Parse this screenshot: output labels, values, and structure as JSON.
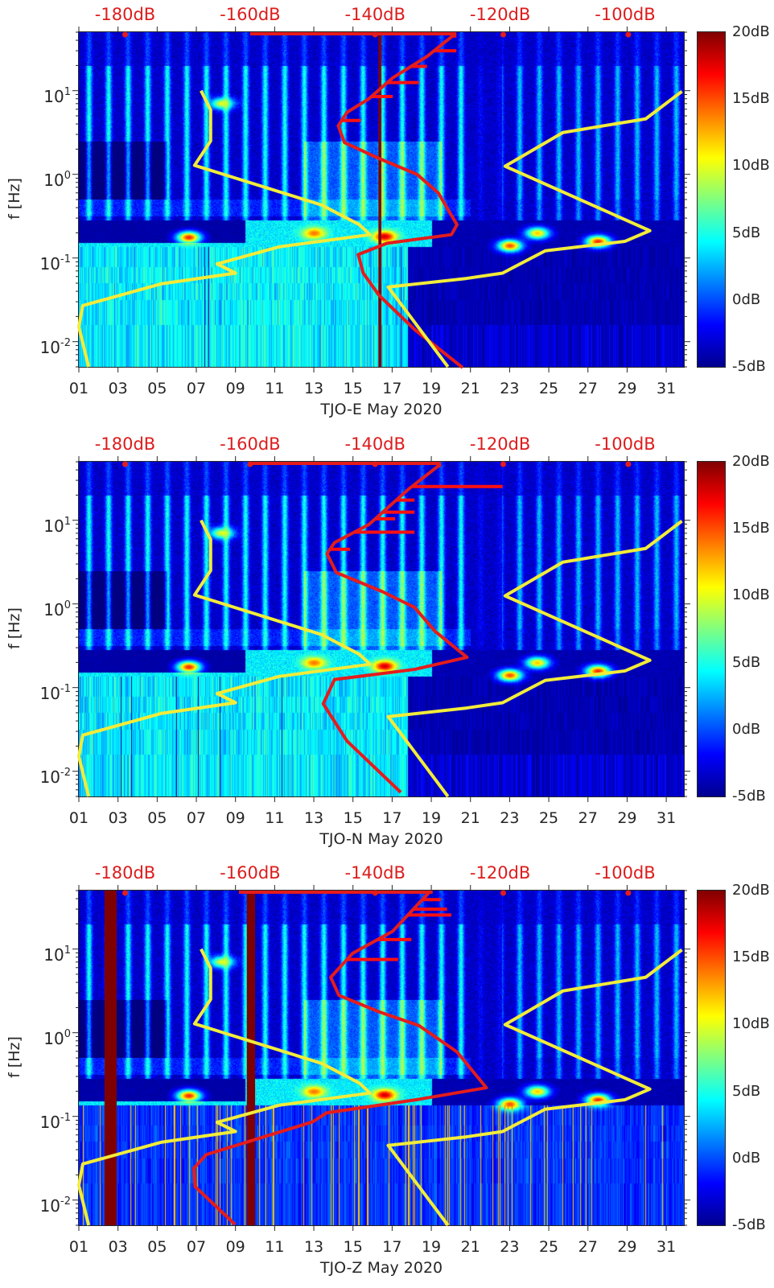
{
  "chart_data": [
    {
      "type": "heatmap",
      "xlabel": "TJO-E May 2020",
      "ylabel": "f [Hz]",
      "xlim": [
        1,
        31.9
      ],
      "ylim": [
        0.005,
        50
      ],
      "yscale": "log",
      "x_ticks": [
        1,
        3,
        5,
        7,
        9,
        11,
        13,
        15,
        17,
        19,
        21,
        23,
        25,
        27,
        29,
        31
      ],
      "x_tick_labels": [
        "01",
        "03",
        "05",
        "07",
        "09",
        "11",
        "13",
        "15",
        "17",
        "19",
        "21",
        "23",
        "25",
        "27",
        "29",
        "31"
      ],
      "y_ticks": [
        10,
        1,
        0.1,
        0.01
      ],
      "y_tick_labels": [
        {
          "base": "10",
          "exp": "1"
        },
        {
          "base": "10",
          "exp": "0"
        },
        {
          "base": "10",
          "exp": "-1"
        },
        {
          "base": "10",
          "exp": "-2"
        }
      ],
      "top_axis": {
        "values": [
          -180,
          -160,
          -140,
          -120,
          -100
        ],
        "labels": [
          "-180dB",
          "-160dB",
          "-140dB",
          "-120dB",
          "-100dB"
        ],
        "xlim": [
          -187.4,
          -90.6
        ]
      },
      "colorbar": {
        "colormap": "jet",
        "range": [
          -5,
          20
        ],
        "values": [
          20,
          15,
          10,
          5,
          0,
          -5
        ],
        "labels": [
          "20dB",
          "15dB",
          "10dB",
          "5dB",
          "0dB",
          "-5dB"
        ]
      },
      "yellow_curve": [
        [
          [
            7.24,
            10
          ],
          [
            7.73,
            5.9
          ],
          [
            7.73,
            2.5
          ],
          [
            6.91,
            1.28
          ],
          [
            13.4,
            0.43
          ],
          [
            15.33,
            0.25
          ],
          [
            15.87,
            0.19
          ],
          [
            11.23,
            0.136
          ],
          [
            8.06,
            0.085
          ],
          [
            9.0,
            0.066
          ],
          [
            5.19,
            0.049
          ],
          [
            1.2,
            0.027
          ],
          [
            1.0,
            0.015
          ],
          [
            1.5,
            0.005
          ]
        ],
        [
          [
            19.85,
            0.005
          ],
          [
            16.8,
            0.045
          ],
          [
            20.8,
            0.057
          ],
          [
            22.64,
            0.066
          ],
          [
            24.82,
            0.122
          ],
          [
            28.88,
            0.158
          ],
          [
            30.16,
            0.212
          ],
          [
            22.77,
            1.25
          ],
          [
            25.72,
            3.16
          ],
          [
            29.95,
            4.6
          ],
          [
            31.8,
            9.8
          ]
        ]
      ],
      "red_curve_dB": [
        [
          -127.3,
          47
        ],
        [
          -131.7,
          25.6
        ],
        [
          -137.2,
          14.2
        ],
        [
          -141,
          8
        ],
        [
          -144.5,
          5.5
        ],
        [
          -145.9,
          3.8
        ],
        [
          -144.9,
          2.4
        ],
        [
          -139.4,
          1.55
        ],
        [
          -133.3,
          1.0
        ],
        [
          -129.9,
          0.6
        ],
        [
          -126.9,
          0.25
        ],
        [
          -127.8,
          0.19
        ],
        [
          -138.1,
          0.15
        ],
        [
          -142.7,
          0.11
        ],
        [
          -141.9,
          0.066
        ],
        [
          -139.4,
          0.036
        ],
        [
          -133.7,
          0.014
        ],
        [
          -126,
          0.0049
        ]
      ],
      "red_spikes_dB": [
        [
          4.4,
          -142.3
        ],
        [
          8.5,
          -137.2
        ],
        [
          12.5,
          -133
        ],
        [
          19.5,
          -131.7
        ],
        [
          30,
          -127
        ],
        [
          45,
          -127
        ]
      ],
      "red_top_line_dB": [
        -160,
        -127
      ],
      "red_markers_dB": [
        -180,
        -140,
        -119.5,
        -99.5
      ],
      "dark_bars_days": [
        [
          16.3,
          16.45
        ]
      ]
    },
    {
      "type": "heatmap",
      "xlabel": "TJO-N May 2020",
      "ylabel": "f [Hz]",
      "xlim": [
        1,
        31.9
      ],
      "ylim": [
        0.005,
        50
      ],
      "yscale": "log",
      "x_ticks": [
        1,
        3,
        5,
        7,
        9,
        11,
        13,
        15,
        17,
        19,
        21,
        23,
        25,
        27,
        29,
        31
      ],
      "x_tick_labels": [
        "01",
        "03",
        "05",
        "07",
        "09",
        "11",
        "13",
        "15",
        "17",
        "19",
        "21",
        "23",
        "25",
        "27",
        "29",
        "31"
      ],
      "y_ticks": [
        10,
        1,
        0.1,
        0.01
      ],
      "y_tick_labels": [
        {
          "base": "10",
          "exp": "1"
        },
        {
          "base": "10",
          "exp": "0"
        },
        {
          "base": "10",
          "exp": "-1"
        },
        {
          "base": "10",
          "exp": "-2"
        }
      ],
      "top_axis": {
        "values": [
          -180,
          -160,
          -140,
          -120,
          -100
        ],
        "labels": [
          "-180dB",
          "-160dB",
          "-140dB",
          "-120dB",
          "-100dB"
        ],
        "xlim": [
          -187.4,
          -90.6
        ]
      },
      "colorbar": {
        "colormap": "jet",
        "range": [
          -5,
          20
        ],
        "values": [
          20,
          15,
          10,
          5,
          0,
          -5
        ],
        "labels": [
          "20dB",
          "15dB",
          "10dB",
          "5dB",
          "0dB",
          "-5dB"
        ]
      },
      "yellow_curve": [
        [
          [
            7.24,
            10
          ],
          [
            7.73,
            5.9
          ],
          [
            7.73,
            2.5
          ],
          [
            6.91,
            1.28
          ],
          [
            13.4,
            0.43
          ],
          [
            15.33,
            0.25
          ],
          [
            15.87,
            0.19
          ],
          [
            11.23,
            0.136
          ],
          [
            8.06,
            0.085
          ],
          [
            9.0,
            0.066
          ],
          [
            5.19,
            0.049
          ],
          [
            1.2,
            0.027
          ],
          [
            1.0,
            0.015
          ],
          [
            1.5,
            0.005
          ]
        ],
        [
          [
            19.85,
            0.005
          ],
          [
            16.8,
            0.045
          ],
          [
            20.8,
            0.057
          ],
          [
            22.64,
            0.066
          ],
          [
            24.82,
            0.122
          ],
          [
            28.88,
            0.158
          ],
          [
            30.16,
            0.212
          ],
          [
            22.77,
            1.25
          ],
          [
            25.72,
            3.16
          ],
          [
            29.95,
            4.6
          ],
          [
            31.8,
            9.8
          ]
        ]
      ],
      "red_curve_dB": [
        [
          -129.5,
          47
        ],
        [
          -134.6,
          23.7
        ],
        [
          -141,
          8.9
        ],
        [
          -146.5,
          5.4
        ],
        [
          -147.7,
          4.0
        ],
        [
          -146.2,
          2.37
        ],
        [
          -138.8,
          1.4
        ],
        [
          -133.7,
          0.91
        ],
        [
          -130.4,
          0.47
        ],
        [
          -125.3,
          0.23
        ],
        [
          -133.7,
          0.165
        ],
        [
          -146.5,
          0.125
        ],
        [
          -148.3,
          0.064
        ],
        [
          -144.5,
          0.023
        ],
        [
          -135.9,
          0.0056
        ]
      ],
      "red_spikes_dB": [
        [
          4.5,
          -144
        ],
        [
          7.2,
          -133.7
        ],
        [
          10.4,
          -136.8
        ],
        [
          12.5,
          -133.7
        ],
        [
          17.4,
          -133.7
        ],
        [
          25.3,
          -119.6
        ],
        [
          45,
          -129.5
        ]
      ],
      "red_top_line_dB": [
        -160,
        -129.5
      ],
      "red_markers_dB": [
        -180,
        -160,
        -140,
        -119.5,
        -99.5
      ],
      "dark_bars_days": []
    },
    {
      "type": "heatmap",
      "xlabel": "TJO-Z May 2020",
      "ylabel": "f [Hz]",
      "xlim": [
        1,
        31.9
      ],
      "ylim": [
        0.005,
        50
      ],
      "yscale": "log",
      "x_ticks": [
        1,
        3,
        5,
        7,
        9,
        11,
        13,
        15,
        17,
        19,
        21,
        23,
        25,
        27,
        29,
        31
      ],
      "x_tick_labels": [
        "01",
        "03",
        "05",
        "07",
        "09",
        "11",
        "13",
        "15",
        "17",
        "19",
        "21",
        "23",
        "25",
        "27",
        "29",
        "31"
      ],
      "y_ticks": [
        10,
        1,
        0.1,
        0.01
      ],
      "y_tick_labels": [
        {
          "base": "10",
          "exp": "1"
        },
        {
          "base": "10",
          "exp": "0"
        },
        {
          "base": "10",
          "exp": "-1"
        },
        {
          "base": "10",
          "exp": "-2"
        }
      ],
      "top_axis": {
        "values": [
          -180,
          -160,
          -140,
          -120,
          -100
        ],
        "labels": [
          "-180dB",
          "-160dB",
          "-140dB",
          "-120dB",
          "-100dB"
        ],
        "xlim": [
          -187.4,
          -90.6
        ]
      },
      "colorbar": {
        "colormap": "jet",
        "range": [
          -5,
          20
        ],
        "values": [
          20,
          15,
          10,
          5,
          0,
          -5
        ],
        "labels": [
          "20dB",
          "15dB",
          "10dB",
          "5dB",
          "0dB",
          "-5dB"
        ]
      },
      "yellow_curve": [
        [
          [
            7.24,
            10
          ],
          [
            7.73,
            5.9
          ],
          [
            7.73,
            2.5
          ],
          [
            6.91,
            1.28
          ],
          [
            13.4,
            0.43
          ],
          [
            15.33,
            0.25
          ],
          [
            15.87,
            0.19
          ],
          [
            11.23,
            0.136
          ],
          [
            8.06,
            0.085
          ],
          [
            9.0,
            0.066
          ],
          [
            5.19,
            0.049
          ],
          [
            1.2,
            0.027
          ],
          [
            1.0,
            0.015
          ],
          [
            1.5,
            0.005
          ]
        ],
        [
          [
            19.85,
            0.005
          ],
          [
            16.8,
            0.045
          ],
          [
            20.8,
            0.057
          ],
          [
            22.64,
            0.066
          ],
          [
            24.82,
            0.122
          ],
          [
            28.88,
            0.158
          ],
          [
            30.16,
            0.212
          ],
          [
            22.77,
            1.25
          ],
          [
            25.72,
            3.16
          ],
          [
            29.95,
            4.6
          ],
          [
            31.8,
            9.8
          ]
        ]
      ],
      "red_curve_dB": [
        [
          -131.2,
          49
        ],
        [
          -137.2,
          16.3
        ],
        [
          -143.6,
          8.9
        ],
        [
          -147.1,
          4.6
        ],
        [
          -145.8,
          2.8
        ],
        [
          -139.4,
          1.78
        ],
        [
          -133,
          1.22
        ],
        [
          -126.9,
          0.59
        ],
        [
          -122.2,
          0.22
        ],
        [
          -133,
          0.16
        ],
        [
          -147.8,
          0.11
        ],
        [
          -150,
          0.086
        ],
        [
          -167,
          0.035
        ],
        [
          -169,
          0.024
        ],
        [
          -168.8,
          0.0145
        ],
        [
          -162.4,
          0.0051
        ]
      ],
      "red_spikes_dB": [
        [
          7.5,
          -136.3
        ],
        [
          13,
          -134.2
        ],
        [
          25.5,
          -127.8
        ],
        [
          30,
          -128.5
        ],
        [
          39,
          -129.5
        ]
      ],
      "red_top_line_dB": [
        -161.8,
        -130.8
      ],
      "red_markers_dB": [
        -180,
        -140,
        -119.5,
        -99.5
      ],
      "dark_bars_days": [
        [
          2.31,
          2.93
        ],
        [
          9.58,
          10.0
        ]
      ]
    }
  ],
  "colors": {
    "yellow": "#f2ec3a",
    "red": "#e51c1c",
    "dark_red": "#7f0000",
    "db_label": "#dd1c1c"
  }
}
